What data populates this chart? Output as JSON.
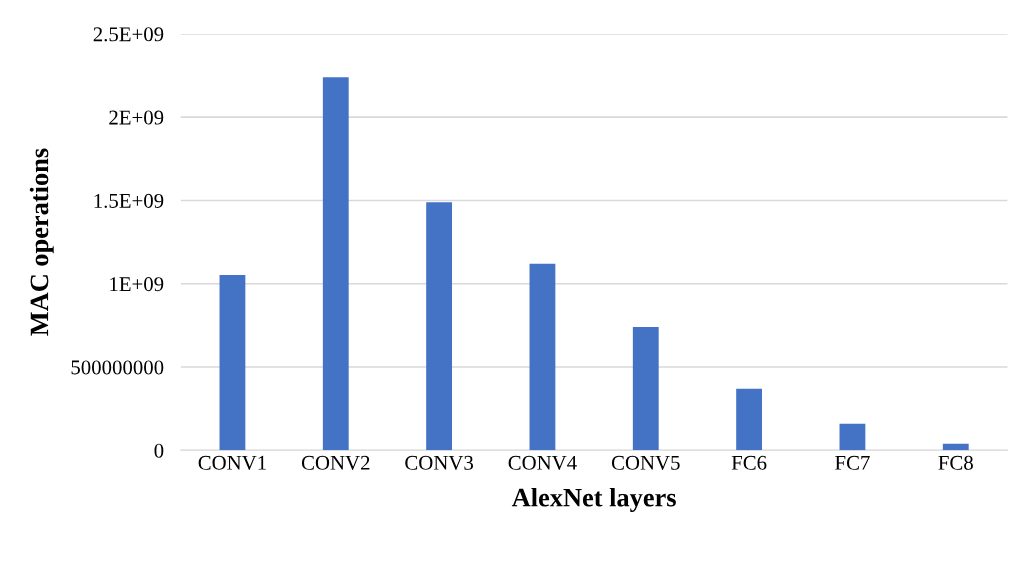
{
  "chart_data": {
    "type": "bar",
    "xlabel": "AlexNet layers",
    "ylabel": "MAC operations",
    "categories": [
      "CONV1",
      "CONV2",
      "CONV3",
      "CONV4",
      "CONV5",
      "FC6",
      "FC7",
      "FC8"
    ],
    "values": [
      1053000000,
      2240000000,
      1490000000,
      1120000000,
      740000000,
      370000000,
      160000000,
      40000000
    ],
    "color": "#4472c4",
    "ylim": [
      0,
      2500000000
    ],
    "yticks": [
      0,
      {
        "value": 500000000,
        "label": "500000000"
      },
      {
        "value": 1000000000,
        "label": "1E+09"
      },
      {
        "value": 1500000000,
        "label": "1.5E+09"
      },
      {
        "value": 2000000000,
        "label": "2E+09"
      },
      {
        "value": 2500000000,
        "label": "2.5E+09"
      }
    ],
    "grid": "y"
  }
}
